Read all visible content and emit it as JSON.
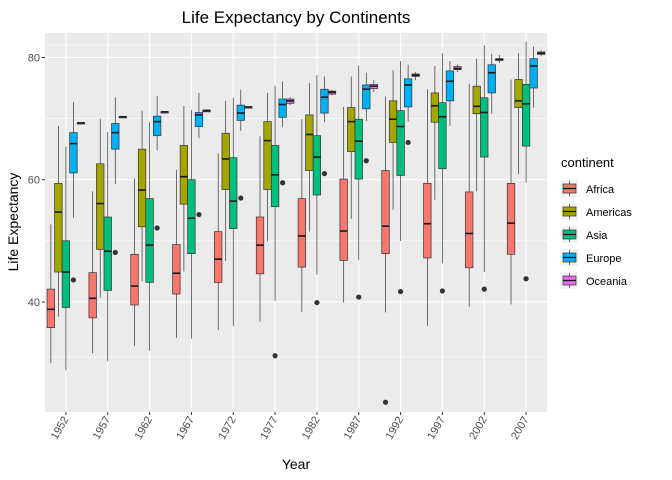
{
  "chart_data": {
    "type": "boxplot",
    "title": "Life Expectancy by Continents",
    "xlabel": "Year",
    "ylabel": "Life Expectancy",
    "categories": [
      "1952",
      "1957",
      "1962",
      "1967",
      "1972",
      "1977",
      "1982",
      "1987",
      "1992",
      "1997",
      "2002",
      "2007"
    ],
    "ylim": [
      22,
      84
    ],
    "yticks": [
      40,
      60,
      80
    ],
    "grid": true,
    "legend": {
      "title": "continent",
      "position": "right"
    },
    "colors": {
      "panel": "#ebebeb",
      "grid": "#ffffff",
      "box_line": "#333333"
    },
    "series": [
      {
        "name": "Africa",
        "color": "#F8766D",
        "boxes": [
          {
            "min": 30.0,
            "q1": 35.8,
            "median": 38.8,
            "q3": 42.1,
            "max": 52.7,
            "outliers": []
          },
          {
            "min": 31.6,
            "q1": 37.4,
            "median": 40.6,
            "q3": 44.8,
            "max": 58.1,
            "outliers": []
          },
          {
            "min": 32.8,
            "q1": 39.5,
            "median": 42.6,
            "q3": 47.8,
            "max": 60.2,
            "outliers": []
          },
          {
            "min": 34.1,
            "q1": 41.3,
            "median": 44.7,
            "q3": 49.4,
            "max": 61.6,
            "outliers": []
          },
          {
            "min": 35.4,
            "q1": 43.2,
            "median": 47.0,
            "q3": 51.5,
            "max": 64.3,
            "outliers": []
          },
          {
            "min": 36.8,
            "q1": 44.6,
            "median": 49.3,
            "q3": 53.9,
            "max": 67.1,
            "outliers": []
          },
          {
            "min": 38.4,
            "q1": 45.7,
            "median": 50.8,
            "q3": 56.9,
            "max": 69.9,
            "outliers": []
          },
          {
            "min": 39.9,
            "q1": 46.8,
            "median": 51.6,
            "q3": 60.1,
            "max": 71.9,
            "outliers": []
          },
          {
            "min": 38.3,
            "q1": 47.9,
            "median": 52.4,
            "q3": 61.5,
            "max": 73.6,
            "outliers": [
              23.6
            ]
          },
          {
            "min": 36.1,
            "q1": 47.2,
            "median": 52.8,
            "q3": 59.4,
            "max": 74.8,
            "outliers": []
          },
          {
            "min": 39.2,
            "q1": 45.6,
            "median": 51.2,
            "q3": 58.0,
            "max": 75.7,
            "outliers": []
          },
          {
            "min": 39.6,
            "q1": 47.8,
            "median": 52.9,
            "q3": 59.4,
            "max": 76.4,
            "outliers": []
          }
        ]
      },
      {
        "name": "Americas",
        "color": "#A3A500",
        "boxes": [
          {
            "min": 37.6,
            "q1": 44.9,
            "median": 54.7,
            "q3": 59.4,
            "max": 68.8,
            "outliers": []
          },
          {
            "min": 40.7,
            "q1": 48.6,
            "median": 56.1,
            "q3": 62.6,
            "max": 70.0,
            "outliers": []
          },
          {
            "min": 43.4,
            "q1": 52.3,
            "median": 58.3,
            "q3": 65.0,
            "max": 71.3,
            "outliers": []
          },
          {
            "min": 45.0,
            "q1": 56.0,
            "median": 60.5,
            "q3": 65.6,
            "max": 72.1,
            "outliers": []
          },
          {
            "min": 46.7,
            "q1": 58.4,
            "median": 63.4,
            "q3": 67.6,
            "max": 72.9,
            "outliers": []
          },
          {
            "min": 49.9,
            "q1": 58.4,
            "median": 66.4,
            "q3": 69.5,
            "max": 74.2,
            "outliers": []
          },
          {
            "min": 51.5,
            "q1": 61.5,
            "median": 67.4,
            "q3": 70.6,
            "max": 75.8,
            "outliers": []
          },
          {
            "min": 53.6,
            "q1": 64.6,
            "median": 69.5,
            "q3": 71.8,
            "max": 76.9,
            "outliers": []
          },
          {
            "min": 55.1,
            "q1": 66.1,
            "median": 69.9,
            "q3": 72.9,
            "max": 77.9,
            "outliers": []
          },
          {
            "min": 56.7,
            "q1": 69.4,
            "median": 72.1,
            "q3": 74.2,
            "max": 78.6,
            "outliers": []
          },
          {
            "min": 58.1,
            "q1": 70.8,
            "median": 72.0,
            "q3": 75.3,
            "max": 79.8,
            "outliers": []
          },
          {
            "min": 60.9,
            "q1": 71.8,
            "median": 72.9,
            "q3": 76.4,
            "max": 80.7,
            "outliers": []
          }
        ]
      },
      {
        "name": "Asia",
        "color": "#00BF7D",
        "boxes": [
          {
            "min": 28.8,
            "q1": 39.1,
            "median": 44.9,
            "q3": 50.0,
            "max": 65.4,
            "outliers": []
          },
          {
            "min": 30.3,
            "q1": 41.9,
            "median": 48.3,
            "q3": 53.9,
            "max": 67.8,
            "outliers": []
          },
          {
            "min": 32.0,
            "q1": 43.2,
            "median": 49.3,
            "q3": 56.9,
            "max": 69.4,
            "outliers": []
          },
          {
            "min": 34.0,
            "q1": 47.9,
            "median": 53.7,
            "q3": 60.0,
            "max": 71.4,
            "outliers": []
          },
          {
            "min": 36.1,
            "q1": 52.0,
            "median": 56.5,
            "q3": 63.6,
            "max": 73.4,
            "outliers": []
          },
          {
            "min": 40.2,
            "q1": 55.6,
            "median": 60.8,
            "q3": 65.6,
            "max": 75.4,
            "outliers": [
              31.2
            ]
          },
          {
            "min": 44.5,
            "q1": 57.5,
            "median": 63.7,
            "q3": 67.2,
            "max": 77.1,
            "outliers": [
              39.9
            ]
          },
          {
            "min": 46.9,
            "q1": 60.1,
            "median": 66.3,
            "q3": 69.9,
            "max": 78.7,
            "outliers": [
              40.8
            ]
          },
          {
            "min": 50.0,
            "q1": 60.7,
            "median": 68.7,
            "q3": 71.3,
            "max": 79.4,
            "outliers": [
              41.7
            ]
          },
          {
            "min": 46.3,
            "q1": 61.8,
            "median": 70.3,
            "q3": 72.6,
            "max": 80.7,
            "outliers": [
              41.8
            ]
          },
          {
            "min": 44.9,
            "q1": 63.7,
            "median": 71.0,
            "q3": 73.4,
            "max": 82.0,
            "outliers": [
              42.1
            ]
          },
          {
            "min": 59.5,
            "q1": 65.5,
            "median": 72.4,
            "q3": 75.6,
            "max": 82.6,
            "outliers": [
              43.8
            ]
          }
        ]
      },
      {
        "name": "Europe",
        "color": "#00B0F6",
        "boxes": [
          {
            "min": 53.8,
            "q1": 61.1,
            "median": 65.9,
            "q3": 67.7,
            "max": 72.7,
            "outliers": [
              43.6
            ]
          },
          {
            "min": 59.3,
            "q1": 65.0,
            "median": 67.7,
            "q3": 69.2,
            "max": 73.5,
            "outliers": [
              48.1
            ]
          },
          {
            "min": 64.8,
            "q1": 67.2,
            "median": 69.5,
            "q3": 70.4,
            "max": 73.7,
            "outliers": [
              52.1
            ]
          },
          {
            "min": 66.8,
            "q1": 68.7,
            "median": 70.6,
            "q3": 71.0,
            "max": 74.2,
            "outliers": [
              54.3
            ]
          },
          {
            "min": 68.0,
            "q1": 69.7,
            "median": 70.9,
            "q3": 72.2,
            "max": 74.7,
            "outliers": [
              57.0
            ]
          },
          {
            "min": 68.6,
            "q1": 70.2,
            "median": 72.3,
            "q3": 73.2,
            "max": 76.1,
            "outliers": [
              59.5
            ]
          },
          {
            "min": 69.4,
            "q1": 70.9,
            "median": 73.5,
            "q3": 74.8,
            "max": 76.9,
            "outliers": [
              61.0
            ]
          },
          {
            "min": 69.6,
            "q1": 71.6,
            "median": 74.8,
            "q3": 75.5,
            "max": 77.5,
            "outliers": [
              63.1
            ]
          },
          {
            "min": 69.5,
            "q1": 71.9,
            "median": 75.5,
            "q3": 76.5,
            "max": 78.8,
            "outliers": [
              66.1
            ]
          },
          {
            "min": 68.8,
            "q1": 72.9,
            "median": 76.1,
            "q3": 77.8,
            "max": 79.4,
            "outliers": []
          },
          {
            "min": 70.8,
            "q1": 74.2,
            "median": 77.5,
            "q3": 78.8,
            "max": 80.6,
            "outliers": []
          },
          {
            "min": 71.8,
            "q1": 75.0,
            "median": 78.6,
            "q3": 79.8,
            "max": 81.8,
            "outliers": []
          }
        ]
      },
      {
        "name": "Oceania",
        "color": "#E76BF3",
        "boxes": [
          {
            "min": 69.1,
            "q1": 69.2,
            "median": 69.3,
            "q3": 69.3,
            "max": 69.4,
            "outliers": []
          },
          {
            "min": 70.3,
            "q1": 70.3,
            "median": 70.3,
            "q3": 70.3,
            "max": 70.3,
            "outliers": []
          },
          {
            "min": 71.0,
            "q1": 71.0,
            "median": 71.1,
            "q3": 71.1,
            "max": 71.2,
            "outliers": []
          },
          {
            "min": 71.1,
            "q1": 71.1,
            "median": 71.3,
            "q3": 71.4,
            "max": 71.5,
            "outliers": []
          },
          {
            "min": 71.8,
            "q1": 71.8,
            "median": 71.9,
            "q3": 71.9,
            "max": 71.9,
            "outliers": []
          },
          {
            "min": 72.2,
            "q1": 72.5,
            "median": 72.9,
            "q3": 73.2,
            "max": 73.5,
            "outliers": []
          },
          {
            "min": 73.8,
            "q1": 74.0,
            "median": 74.3,
            "q3": 74.5,
            "max": 74.7,
            "outliers": []
          },
          {
            "min": 74.3,
            "q1": 74.9,
            "median": 75.3,
            "q3": 75.6,
            "max": 76.3,
            "outliers": []
          },
          {
            "min": 76.3,
            "q1": 76.9,
            "median": 77.1,
            "q3": 77.3,
            "max": 77.6,
            "outliers": []
          },
          {
            "min": 77.6,
            "q1": 78.0,
            "median": 78.2,
            "q3": 78.5,
            "max": 78.8,
            "outliers": []
          },
          {
            "min": 79.1,
            "q1": 79.5,
            "median": 79.7,
            "q3": 79.8,
            "max": 80.4,
            "outliers": []
          },
          {
            "min": 80.2,
            "q1": 80.5,
            "median": 80.7,
            "q3": 80.9,
            "max": 81.2,
            "outliers": []
          }
        ]
      }
    ]
  }
}
